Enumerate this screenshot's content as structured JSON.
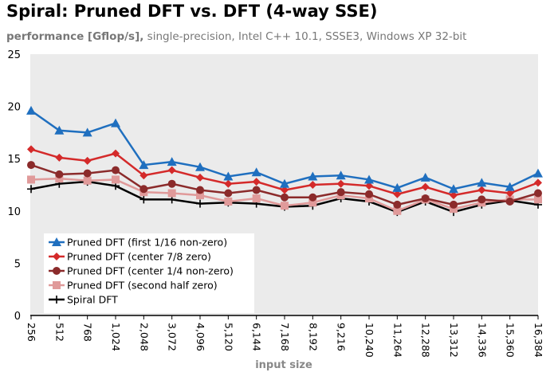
{
  "chart_data": {
    "type": "line",
    "title": "Spiral: Pruned DFT vs. DFT (4-way SSE)",
    "subtitle_bold": "performance [Gflop/s],",
    "subtitle_rest": " single-precision, Intel C++ 10.1, SSSE3, Windows XP 32-bit",
    "xlabel": "input size",
    "ylabel": "",
    "ylim": [
      0,
      25
    ],
    "yticks": [
      "0",
      "5",
      "10",
      "15",
      "20",
      "25"
    ],
    "categories": [
      "256",
      "512",
      "768",
      "1,024",
      "2,048",
      "3,072",
      "4,096",
      "5,120",
      "6,144",
      "7,168",
      "8,192",
      "9,216",
      "10,240",
      "11,264",
      "12,288",
      "13,312",
      "14,336",
      "15,360",
      "16,384"
    ],
    "legend_position": "bottom-left",
    "grid": false,
    "series": [
      {
        "name": "Pruned DFT (first 1/16 non-zero)",
        "color": "#1f6fbf",
        "marker": "triangle",
        "values": [
          19.6,
          17.7,
          17.5,
          18.4,
          14.4,
          14.7,
          14.2,
          13.3,
          13.7,
          12.6,
          13.3,
          13.4,
          13.0,
          12.2,
          13.2,
          12.1,
          12.7,
          12.3,
          13.6
        ]
      },
      {
        "name": "Pruned DFT (center 7/8 zero)",
        "color": "#d42a2a",
        "marker": "diamond",
        "values": [
          15.9,
          15.1,
          14.8,
          15.5,
          13.4,
          13.9,
          13.2,
          12.6,
          12.8,
          12.0,
          12.5,
          12.6,
          12.4,
          11.6,
          12.3,
          11.5,
          12.0,
          11.7,
          12.7
        ]
      },
      {
        "name": "Pruned DFT (center 1/4 non-zero)",
        "color": "#8b2b2b",
        "marker": "circle",
        "values": [
          14.4,
          13.5,
          13.6,
          13.9,
          12.1,
          12.6,
          12.0,
          11.7,
          12.0,
          11.3,
          11.3,
          11.8,
          11.6,
          10.6,
          11.2,
          10.6,
          11.1,
          10.9,
          11.7
        ]
      },
      {
        "name": "Pruned DFT (second half zero)",
        "color": "#e09a9a",
        "marker": "square",
        "values": [
          13.0,
          13.1,
          12.9,
          13.0,
          11.8,
          11.7,
          11.5,
          10.9,
          11.2,
          10.5,
          10.8,
          11.5,
          11.2,
          10.0,
          11.1,
          10.2,
          10.8,
          11.1,
          11.1
        ]
      },
      {
        "name": "Spiral DFT",
        "color": "#000000",
        "marker": "plus",
        "values": [
          12.1,
          12.6,
          12.8,
          12.4,
          11.1,
          11.1,
          10.7,
          10.8,
          10.7,
          10.4,
          10.5,
          11.2,
          10.9,
          9.9,
          10.9,
          9.9,
          10.6,
          11.0,
          10.6
        ]
      }
    ]
  }
}
